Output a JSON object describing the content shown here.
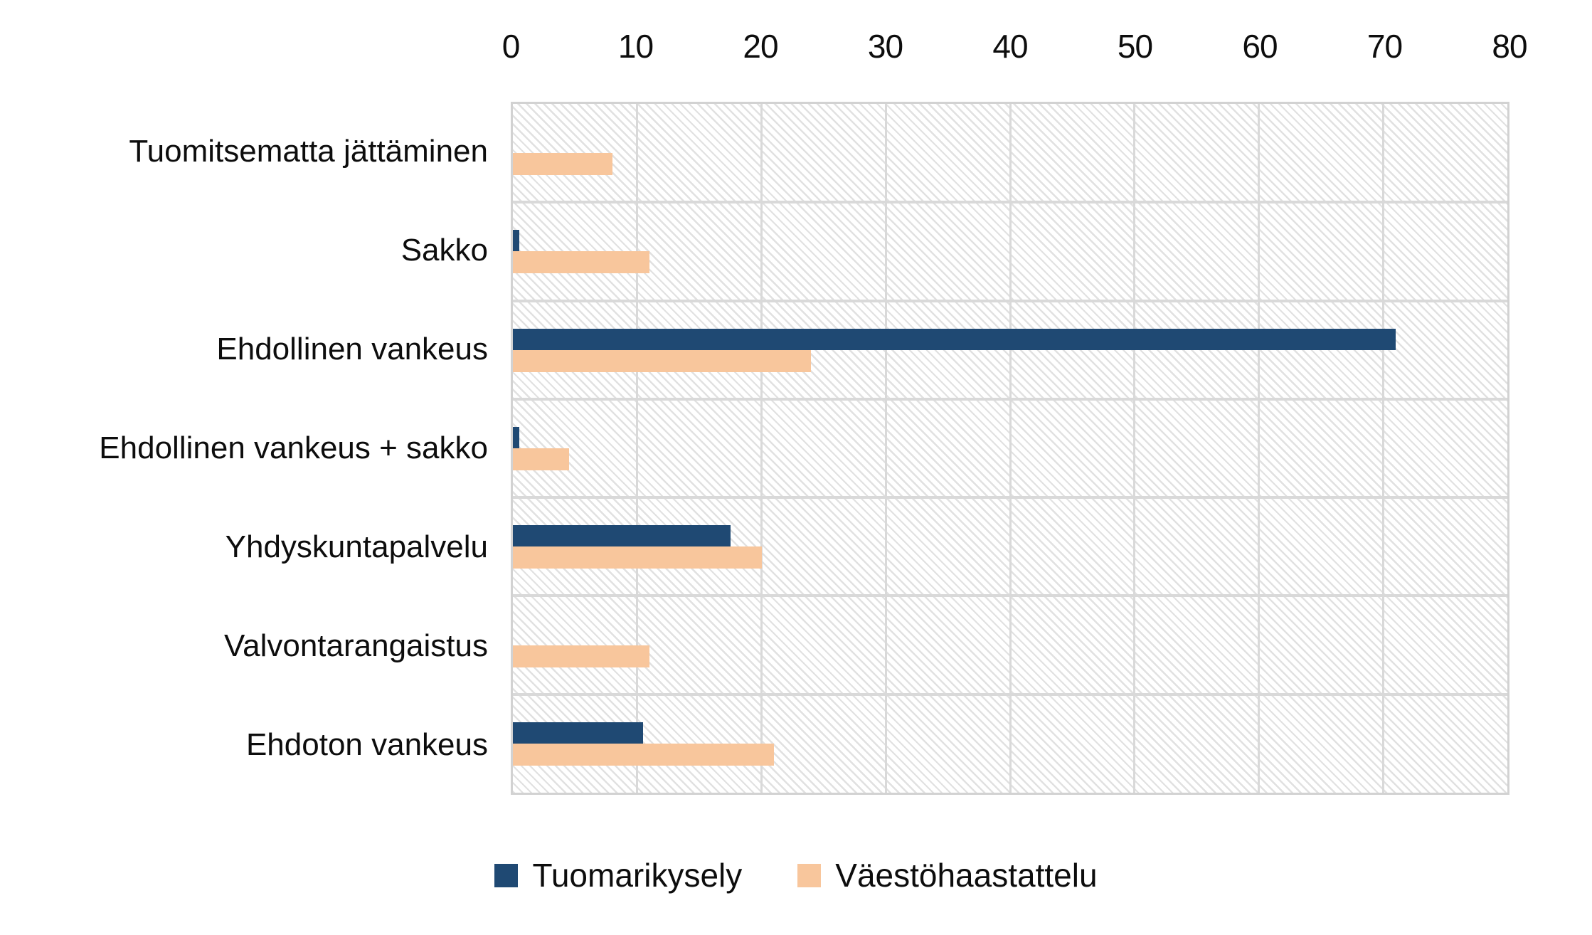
{
  "chart_data": {
    "type": "bar",
    "orientation": "horizontal",
    "title": "",
    "categories": [
      "Tuomitsematta jättäminen",
      "Sakko",
      "Ehdollinen vankeus",
      "Ehdollinen vankeus + sakko",
      "Yhdyskuntapalvelu",
      "Valvontarangaistus",
      "Ehdoton vankeus"
    ],
    "series": [
      {
        "name": "Tuomarikysely",
        "color": "#1f4973",
        "values": [
          0,
          0.5,
          71,
          0.5,
          17.5,
          0,
          10.5
        ]
      },
      {
        "name": "Väestöhaastattelu",
        "color": "#f8c69c",
        "values": [
          8,
          11,
          24,
          4.5,
          20,
          11,
          21
        ]
      }
    ],
    "x_ticks": [
      0,
      10,
      20,
      30,
      40,
      50,
      60,
      70,
      80
    ],
    "xlim": [
      0,
      80
    ],
    "grid": true,
    "gridline_color": "#d9d9d9",
    "plot_border_color": "#d2d2d2",
    "plot_pattern": "diagonal-hatch",
    "axis_position": "top",
    "legend_position": "bottom"
  }
}
